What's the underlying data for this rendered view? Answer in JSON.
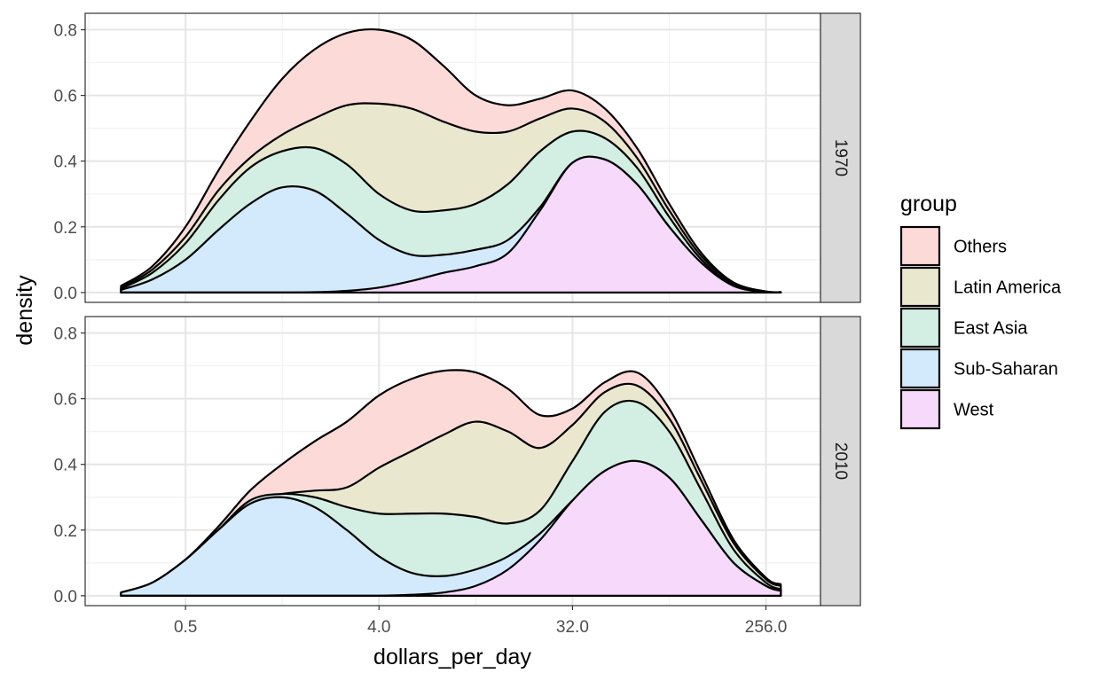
{
  "chart_data": {
    "type": "area",
    "xlabel": "dollars_per_day",
    "ylabel": "density",
    "x_scale": "log2",
    "x_tick_labels": [
      "0.5",
      "4.0",
      "32.0",
      "256.0"
    ],
    "x_ticks": [
      0.5,
      4,
      32,
      256
    ],
    "xlim": [
      0.17,
      460
    ],
    "ylim": [
      -0.03,
      0.85
    ],
    "y_ticks": [
      0,
      0.2,
      0.4,
      0.6,
      0.8
    ],
    "y_tick_labels": [
      "0.0",
      "0.2",
      "0.4",
      "0.6",
      "0.8"
    ],
    "stacked": true,
    "grid": true,
    "legend": {
      "title": "group",
      "position": "right",
      "entries": [
        {
          "name": "Others",
          "color": "#FCDAD8"
        },
        {
          "name": "Latin America",
          "color": "#E9E8CF"
        },
        {
          "name": "East Asia",
          "color": "#D3EEE3"
        },
        {
          "name": "Sub-Saharan",
          "color": "#D2EAFB"
        },
        {
          "name": "West",
          "color": "#F7D9FB"
        }
      ]
    },
    "series_order_bottom_to_top": [
      "West",
      "Sub-Saharan",
      "East Asia",
      "Latin America",
      "Others"
    ],
    "x": [
      0.25,
      0.35,
      0.5,
      0.71,
      1,
      1.41,
      2,
      2.83,
      4,
      5.66,
      8,
      11.3,
      16,
      22.6,
      32,
      45.3,
      64,
      90.5,
      128,
      181,
      256,
      300
    ],
    "facets": [
      {
        "label": "1970",
        "cumulative": [
          {
            "name": "West",
            "values": [
              0,
              0,
              0,
              0,
              0,
              0,
              0.001,
              0.005,
              0.015,
              0.035,
              0.06,
              0.08,
              0.12,
              0.25,
              0.395,
              0.405,
              0.33,
              0.2,
              0.09,
              0.02,
              0.002,
              0.001
            ]
          },
          {
            "name": "Sub-Saharan",
            "values": [
              0.008,
              0.04,
              0.1,
              0.19,
              0.27,
              0.32,
              0.31,
              0.24,
              0.16,
              0.115,
              0.115,
              0.13,
              0.16,
              0.26,
              0.395,
              0.405,
              0.33,
              0.2,
              0.09,
              0.02,
              0.002,
              0.001
            ]
          },
          {
            "name": "East Asia",
            "values": [
              0.012,
              0.06,
              0.15,
              0.28,
              0.38,
              0.43,
              0.44,
              0.39,
              0.3,
              0.25,
              0.25,
              0.27,
              0.33,
              0.43,
              0.49,
              0.47,
              0.38,
              0.23,
              0.1,
              0.025,
              0.003,
              0.001
            ]
          },
          {
            "name": "Latin America",
            "values": [
              0.015,
              0.07,
              0.17,
              0.31,
              0.41,
              0.48,
              0.53,
              0.57,
              0.575,
              0.56,
              0.52,
              0.49,
              0.49,
              0.53,
              0.56,
              0.52,
              0.41,
              0.25,
              0.11,
              0.03,
              0.003,
              0.001
            ]
          },
          {
            "name": "Others",
            "values": [
              0.02,
              0.08,
              0.2,
              0.37,
              0.52,
              0.65,
              0.74,
              0.79,
              0.8,
              0.77,
              0.69,
              0.6,
              0.57,
              0.59,
              0.615,
              0.56,
              0.44,
              0.27,
              0.12,
              0.03,
              0.003,
              0.001
            ]
          }
        ]
      },
      {
        "label": "2010",
        "cumulative": [
          {
            "name": "West",
            "values": [
              0,
              0,
              0,
              0,
              0,
              0,
              0,
              0,
              0,
              0.003,
              0.01,
              0.03,
              0.08,
              0.17,
              0.29,
              0.38,
              0.41,
              0.36,
              0.23,
              0.1,
              0.03,
              0.015
            ]
          },
          {
            "name": "Sub-Saharan",
            "values": [
              0.01,
              0.04,
              0.11,
              0.2,
              0.28,
              0.3,
              0.27,
              0.2,
              0.12,
              0.07,
              0.06,
              0.08,
              0.12,
              0.19,
              0.29,
              0.38,
              0.41,
              0.36,
              0.23,
              0.1,
              0.03,
              0.015
            ]
          },
          {
            "name": "East Asia",
            "values": [
              0.01,
              0.04,
              0.11,
              0.2,
              0.29,
              0.31,
              0.3,
              0.27,
              0.25,
              0.25,
              0.25,
              0.24,
              0.22,
              0.26,
              0.41,
              0.56,
              0.59,
              0.5,
              0.32,
              0.14,
              0.04,
              0.02
            ]
          },
          {
            "name": "Latin America",
            "values": [
              0.01,
              0.04,
              0.11,
              0.2,
              0.29,
              0.31,
              0.32,
              0.33,
              0.39,
              0.44,
              0.49,
              0.53,
              0.5,
              0.45,
              0.52,
              0.62,
              0.64,
              0.54,
              0.35,
              0.16,
              0.05,
              0.03
            ]
          },
          {
            "name": "Others",
            "values": [
              0.01,
              0.04,
              0.11,
              0.21,
              0.32,
              0.4,
              0.47,
              0.53,
              0.61,
              0.66,
              0.685,
              0.68,
              0.63,
              0.55,
              0.57,
              0.65,
              0.68,
              0.57,
              0.37,
              0.17,
              0.055,
              0.035
            ]
          }
        ]
      }
    ]
  }
}
